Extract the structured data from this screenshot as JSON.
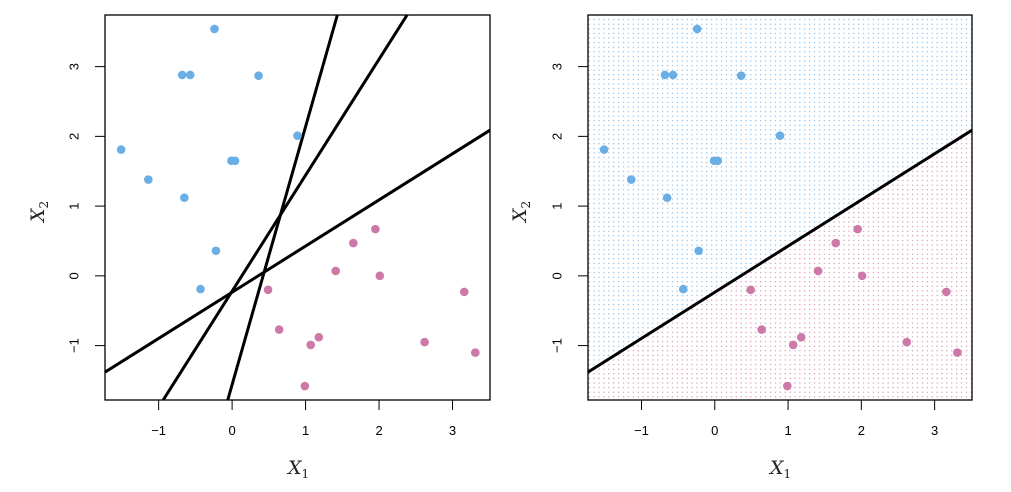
{
  "chart_data": [
    {
      "type": "scatter",
      "panel": "left",
      "title": "",
      "xlabel": "X1",
      "ylabel": "X2",
      "xlim": [
        -1.73,
        3.51
      ],
      "ylim": [
        -1.78,
        3.74
      ],
      "xticks": [
        -1,
        0,
        1,
        2,
        3
      ],
      "yticks": [
        -1,
        0,
        1,
        2,
        3
      ],
      "xtick_labels": [
        "−1",
        "0",
        "1",
        "2",
        "3"
      ],
      "ytick_labels": [
        "−1",
        "0",
        "1",
        "2",
        "3"
      ],
      "lines": [
        {
          "slope": 0.662,
          "intercept": -0.235
        },
        {
          "slope": 1.663,
          "intercept": -0.22
        },
        {
          "slope": 3.7,
          "intercept": -1.56
        }
      ],
      "shading": false
    },
    {
      "type": "scatter",
      "panel": "right",
      "title": "",
      "xlabel": "X1",
      "ylabel": "X2",
      "xlim": [
        -1.73,
        3.51
      ],
      "ylim": [
        -1.78,
        3.74
      ],
      "xticks": [
        -1,
        0,
        1,
        2,
        3
      ],
      "yticks": [
        -1,
        0,
        1,
        2,
        3
      ],
      "xtick_labels": [
        "−1",
        "0",
        "1",
        "2",
        "3"
      ],
      "ytick_labels": [
        "−1",
        "0",
        "1",
        "2",
        "3"
      ],
      "lines": [
        {
          "slope": 0.662,
          "intercept": -0.235
        }
      ],
      "shading": true
    }
  ],
  "series": [
    {
      "name": "blue",
      "color": "#6aaee6",
      "points": [
        [
          -0.24,
          3.54
        ],
        [
          -0.68,
          2.88
        ],
        [
          -0.57,
          2.88
        ],
        [
          0.36,
          2.87
        ],
        [
          0.89,
          2.01
        ],
        [
          -1.51,
          1.81
        ],
        [
          -0.01,
          1.65
        ],
        [
          0.04,
          1.65
        ],
        [
          -1.14,
          1.38
        ],
        [
          -0.65,
          1.12
        ],
        [
          -0.22,
          0.36
        ],
        [
          -0.43,
          -0.19
        ]
      ]
    },
    {
      "name": "pink",
      "color": "#cc79a7",
      "points": [
        [
          1.95,
          0.67
        ],
        [
          1.65,
          0.47
        ],
        [
          1.41,
          0.07
        ],
        [
          2.01,
          0.0
        ],
        [
          0.49,
          -0.2
        ],
        [
          0.64,
          -0.77
        ],
        [
          1.18,
          -0.88
        ],
        [
          1.07,
          -0.99
        ],
        [
          2.62,
          -0.95
        ],
        [
          3.16,
          -0.23
        ],
        [
          3.31,
          -1.1
        ],
        [
          0.99,
          -1.58
        ]
      ]
    }
  ],
  "axis_labels": {
    "x_main": "X",
    "x_sub": "1",
    "y_main": "X",
    "y_sub": "2"
  }
}
